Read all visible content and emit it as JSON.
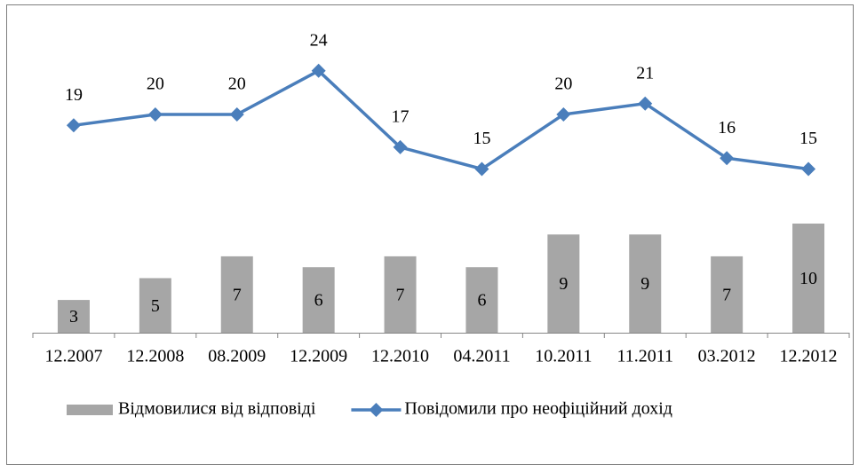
{
  "chart_data": {
    "type": "bar-line",
    "categories": [
      "12.2007",
      "12.2008",
      "08.2009",
      "12.2009",
      "12.2010",
      "04.2011",
      "10.2011",
      "11.2011",
      "03.2012",
      "12.2012"
    ],
    "series": [
      {
        "name": "Відмовилися від відповіді",
        "type": "bar",
        "color": "#a6a6a6",
        "values": [
          3,
          5,
          7,
          6,
          7,
          6,
          9,
          9,
          7,
          10
        ]
      },
      {
        "name": "Повідомили про неофіційний дохід",
        "type": "line",
        "color": "#4a7ebb",
        "values": [
          19,
          20,
          20,
          24,
          17,
          15,
          20,
          21,
          16,
          15
        ]
      }
    ],
    "ylim": [
      0,
      30
    ],
    "legend": "bottom"
  }
}
